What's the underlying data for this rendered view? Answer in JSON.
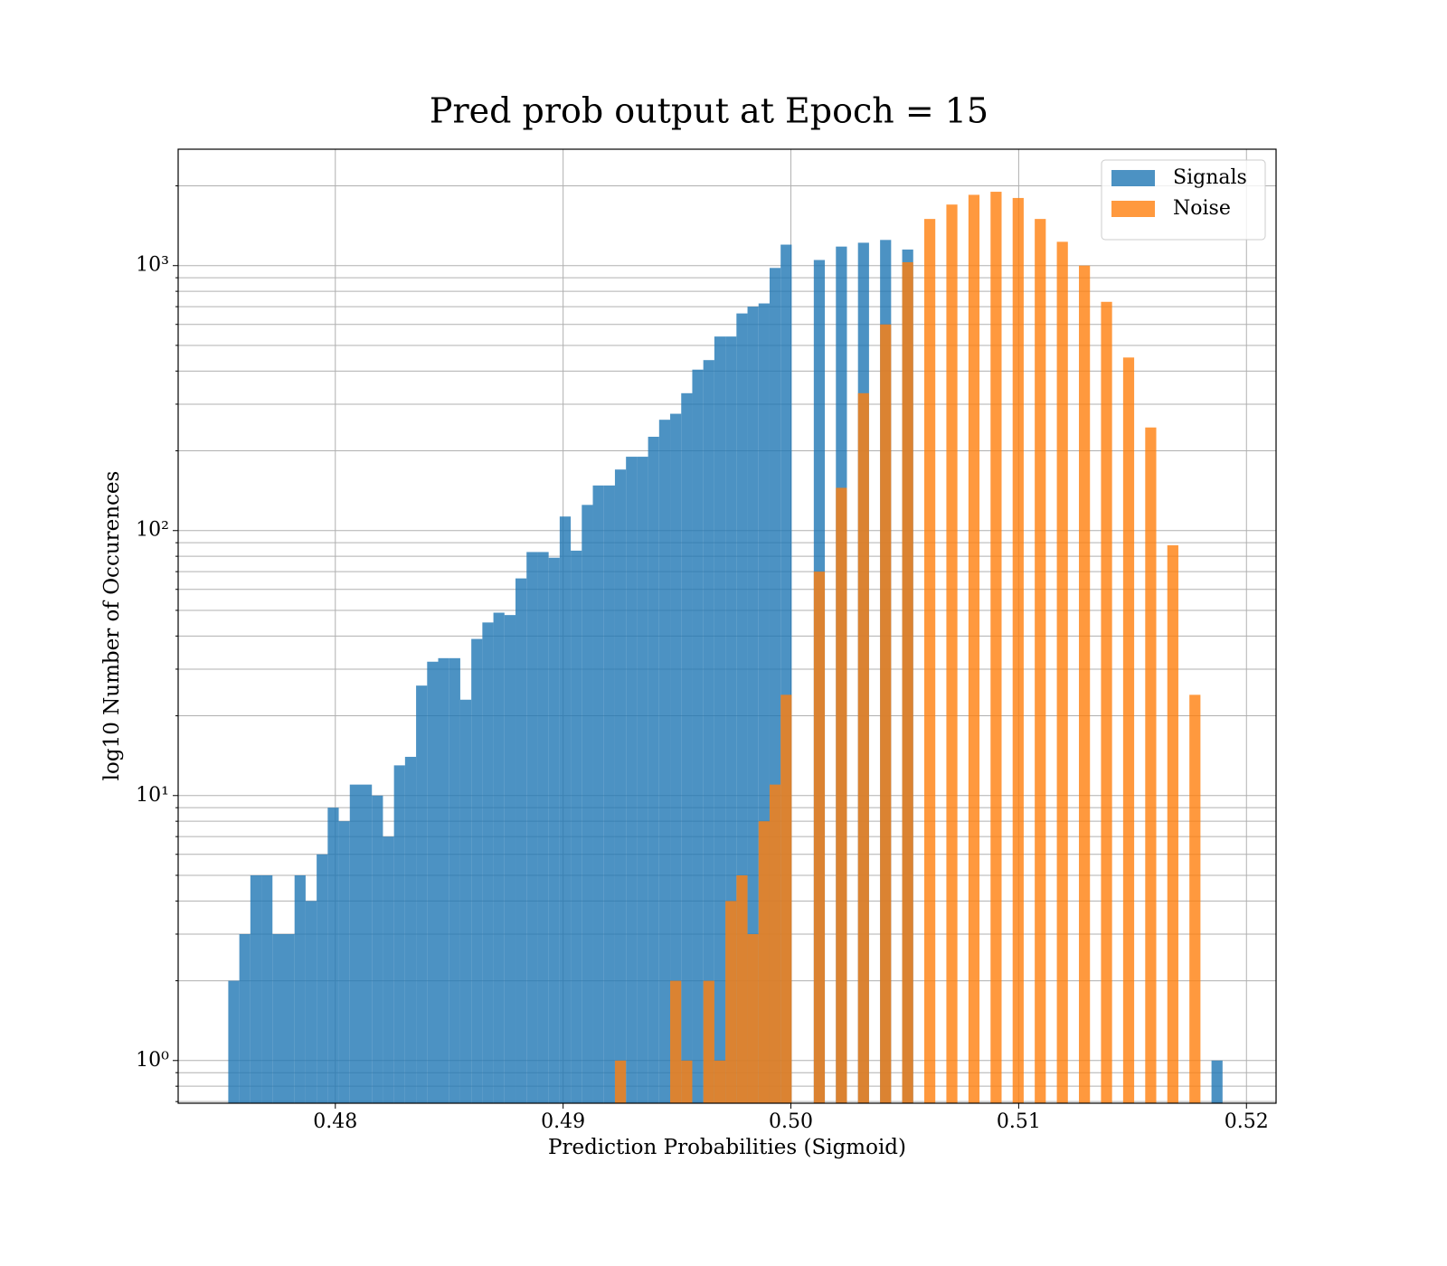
{
  "chart_data": {
    "type": "histogram",
    "title": "Pred prob output at Epoch = 15",
    "xlabel": "Prediction Probabilities (Sigmoid)",
    "ylabel": "log10 Number of Occurences",
    "bins": [
      0.4753,
      0.475785,
      0.47627,
      0.476755,
      0.47724,
      0.477725,
      0.47821,
      0.478695,
      0.47918,
      0.479665,
      0.48015,
      0.480635,
      0.48112,
      0.481605,
      0.48209,
      0.482575,
      0.48306,
      0.483545,
      0.48403,
      0.484515,
      0.485,
      0.485485,
      0.48597,
      0.486455,
      0.48694,
      0.487425,
      0.48791,
      0.488395,
      0.48888,
      0.489365,
      0.48985,
      0.490335,
      0.49082,
      0.491305,
      0.49179,
      0.492275,
      0.49276,
      0.493245,
      0.49373,
      0.494215,
      0.4947,
      0.495185,
      0.49567,
      0.496155,
      0.49664,
      0.497125,
      0.49761,
      0.498095,
      0.49858,
      0.499065,
      0.49955,
      0.500035,
      0.50052,
      0.501005,
      0.50149,
      0.501975,
      0.50246,
      0.502945,
      0.50343,
      0.503915,
      0.5044,
      0.504885,
      0.50537,
      0.505855,
      0.50634,
      0.506825,
      0.50731,
      0.507795,
      0.50828,
      0.508765,
      0.50925,
      0.509735,
      0.51022,
      0.510705,
      0.51119,
      0.511675,
      0.51216,
      0.512645,
      0.51313,
      0.513615,
      0.5141,
      0.514585,
      0.51507,
      0.515555,
      0.51604,
      0.516525,
      0.51701,
      0.517495,
      0.51798,
      0.518465,
      0.51895
    ],
    "series": [
      {
        "name": "Signals",
        "color": "#1f77b4",
        "values": [
          2,
          3,
          5,
          5,
          3,
          3,
          5,
          4,
          6,
          9,
          8,
          11,
          11,
          10,
          7,
          13,
          14,
          26,
          32,
          33,
          33,
          23,
          39,
          45,
          49,
          48,
          66,
          83,
          83,
          79,
          113,
          84,
          125,
          148,
          148,
          170,
          190,
          190,
          226,
          262,
          276,
          330,
          405,
          440,
          540,
          540,
          660,
          700,
          720,
          980,
          1200,
          0,
          0,
          1050,
          0,
          1180,
          0,
          1220,
          0,
          1250,
          0,
          1150,
          0,
          0,
          0,
          0,
          0,
          0,
          0,
          0,
          0,
          0,
          0,
          0,
          0,
          0,
          0,
          0,
          0,
          0,
          0,
          0,
          0,
          0,
          0,
          0,
          0,
          0,
          0,
          1
        ]
      },
      {
        "name": "Noise",
        "color": "#ff7f0e",
        "values": [
          0,
          0,
          0,
          0,
          0,
          0,
          0,
          0,
          0,
          0,
          0,
          0,
          0,
          0,
          0,
          0,
          0,
          0,
          0,
          0,
          0,
          0,
          0,
          0,
          0,
          0,
          0,
          0,
          0,
          0,
          0,
          0,
          0,
          0,
          0,
          1,
          0,
          0,
          0,
          0,
          2,
          1,
          0,
          2,
          1,
          4,
          5,
          3,
          8,
          11,
          24,
          0,
          0,
          70,
          0,
          145,
          0,
          330,
          0,
          600,
          0,
          1030,
          0,
          1500,
          0,
          1700,
          0,
          1850,
          0,
          1900,
          0,
          1800,
          0,
          1500,
          0,
          1230,
          0,
          1000,
          0,
          730,
          0,
          450,
          0,
          245,
          0,
          88,
          0,
          24,
          0,
          0
        ]
      }
    ],
    "xlim": [
      0.4731,
      0.5213
    ],
    "xticks": [
      0.48,
      0.49,
      {
        "value": 0.5,
        "label": "0.50"
      },
      0.51,
      0.52
    ],
    "ylim": [
      0.69,
      2750
    ],
    "yscale": "log",
    "yticks": [
      {
        "value": 1,
        "label": "10⁰"
      },
      {
        "value": 10,
        "label": "10¹"
      },
      {
        "value": 100,
        "label": "10²"
      },
      {
        "value": 1000,
        "label": "10³"
      }
    ],
    "yminorticks": [
      0.7,
      0.8,
      0.9,
      2,
      3,
      4,
      5,
      6,
      7,
      8,
      9,
      20,
      30,
      40,
      50,
      60,
      70,
      80,
      90,
      200,
      300,
      400,
      500,
      600,
      700,
      800,
      900,
      2000
    ],
    "grid": true,
    "legend": "upper right"
  }
}
